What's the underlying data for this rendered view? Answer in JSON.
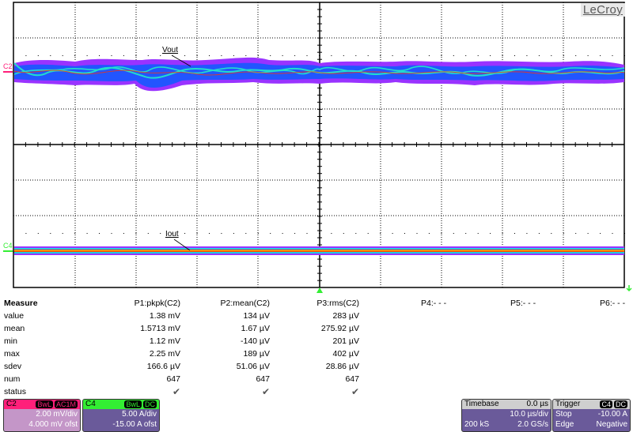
{
  "brand": "LeCroy",
  "colors": {
    "c2": "#ff1f7a",
    "c4": "#33ee33",
    "trigger_marker": "#33ee33",
    "persistence_low": "#9933ff",
    "persistence_mid": "#2266ff",
    "persistence_high": "#22ddcc",
    "persistence_peak": "#ff3300"
  },
  "grid": {
    "h_divisions": 10,
    "v_divisions": 8
  },
  "traces": [
    {
      "channel": "C2",
      "label": "Vout"
    },
    {
      "channel": "C4",
      "label": "Iout"
    }
  ],
  "measure": {
    "title": "Measure",
    "row_labels": [
      "value",
      "mean",
      "min",
      "max",
      "sdev",
      "num",
      "status"
    ],
    "params": [
      {
        "name": "P1:pkpk(C2)",
        "value": "1.38 mV",
        "mean": "1.5713 mV",
        "min": "1.12 mV",
        "max": "2.25 mV",
        "sdev": "166.6 µV",
        "num": "647",
        "status": "✔"
      },
      {
        "name": "P2:mean(C2)",
        "value": "134 µV",
        "mean": "1.67 µV",
        "min": "-140 µV",
        "max": "189 µV",
        "sdev": "51.06 µV",
        "num": "647",
        "status": "✔"
      },
      {
        "name": "P3:rms(C2)",
        "value": "283 µV",
        "mean": "275.92 µV",
        "min": "201 µV",
        "max": "402 µV",
        "sdev": "28.86 µV",
        "num": "647",
        "status": "✔"
      },
      {
        "name": "P4:- - -"
      },
      {
        "name": "P5:- - -"
      },
      {
        "name": "P6:- - -"
      }
    ]
  },
  "channels": {
    "c2": {
      "name": "C2",
      "tags": [
        "BwL",
        "AC1M"
      ],
      "vdiv": "2.00 mV/div",
      "offset": "4.000 mV ofst"
    },
    "c4": {
      "name": "C4",
      "tags": [
        "BwL",
        "DC"
      ],
      "vdiv": "5.00 A/div",
      "offset": "-15.00 A ofst"
    }
  },
  "timebase": {
    "title": "Timebase",
    "delay": "0.0 µs",
    "tdiv": "10.0 µs/div",
    "samples": "200 kS",
    "rate": "2.0 GS/s"
  },
  "trigger": {
    "title": "Trigger",
    "tags": [
      "C4",
      "DC"
    ],
    "mode": "Stop",
    "level": "-10.00 A",
    "type": "Edge",
    "slope": "Negative"
  }
}
